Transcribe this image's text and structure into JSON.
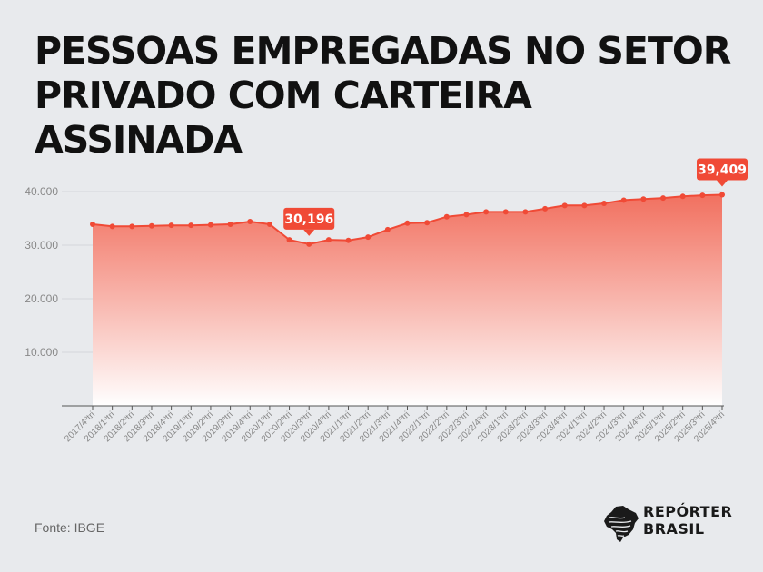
{
  "title_line1": "PESSOAS EMPREGADAS NO SETOR",
  "title_line2": "PRIVADO COM CARTEIRA ASSINADA",
  "source": "Fonte: IBGE",
  "brand": {
    "line1": "REPÓRTER",
    "line2": "BRASIL"
  },
  "colors": {
    "line": "#f04a36",
    "fill_top": "#f26a58",
    "fill_bottom": "#ffffff",
    "callout": "#f04a36",
    "grid": "#d5d7da",
    "axis_text": "#888888"
  },
  "chart_data": {
    "type": "area",
    "title": "PESSOAS EMPREGADAS NO SETOR PRIVADO COM CARTEIRA ASSINADA",
    "xlabel": "",
    "ylabel": "",
    "ylim": [
      0,
      40000
    ],
    "yticks": [
      10000,
      20000,
      30000,
      40000
    ],
    "ytick_labels": [
      "10.000",
      "20.000",
      "30.000",
      "40.000"
    ],
    "grid": true,
    "categories": [
      "2017/4ºtri",
      "2018/1ºtri",
      "2018/2ºtri",
      "2018/3ºtri",
      "2018/4ºtri",
      "2019/1ºtri",
      "2019/2ºtri",
      "2019/3ºtri",
      "2019/4ºtri",
      "2020/1ºtri",
      "2020/2ºtri",
      "2020/3ºtri",
      "2020/4ºtri",
      "2021/1ºtri",
      "2021/2ºtri",
      "2021/3ºtri",
      "2021/4ºtri",
      "2022/1ºtri",
      "2022/2ºtri",
      "2022/3ºtri",
      "2022/4ºtri",
      "2023/1ºtri",
      "2023/2ºtri",
      "2023/3ºtri",
      "2023/4ºtri",
      "2024/1ºtri",
      "2024/2ºtri",
      "2024/3ºtri",
      "2024/4ºtri",
      "2025/1ºtri",
      "2025/2ºtri",
      "2025/3ºtri",
      "2025/4ºtri"
    ],
    "series": [
      {
        "values": [
          33900,
          33500,
          33500,
          33600,
          33700,
          33700,
          33800,
          33900,
          34400,
          33900,
          31000,
          30196,
          31000,
          30900,
          31500,
          32900,
          34100,
          34200,
          35300,
          35700,
          36200,
          36200,
          36200,
          36800,
          37400,
          37400,
          37800,
          38400,
          38600,
          38800,
          39100,
          39300,
          39409
        ]
      }
    ],
    "annotations": [
      {
        "index": 11,
        "label": "30,196"
      },
      {
        "index": 32,
        "label": "39,409"
      }
    ]
  }
}
